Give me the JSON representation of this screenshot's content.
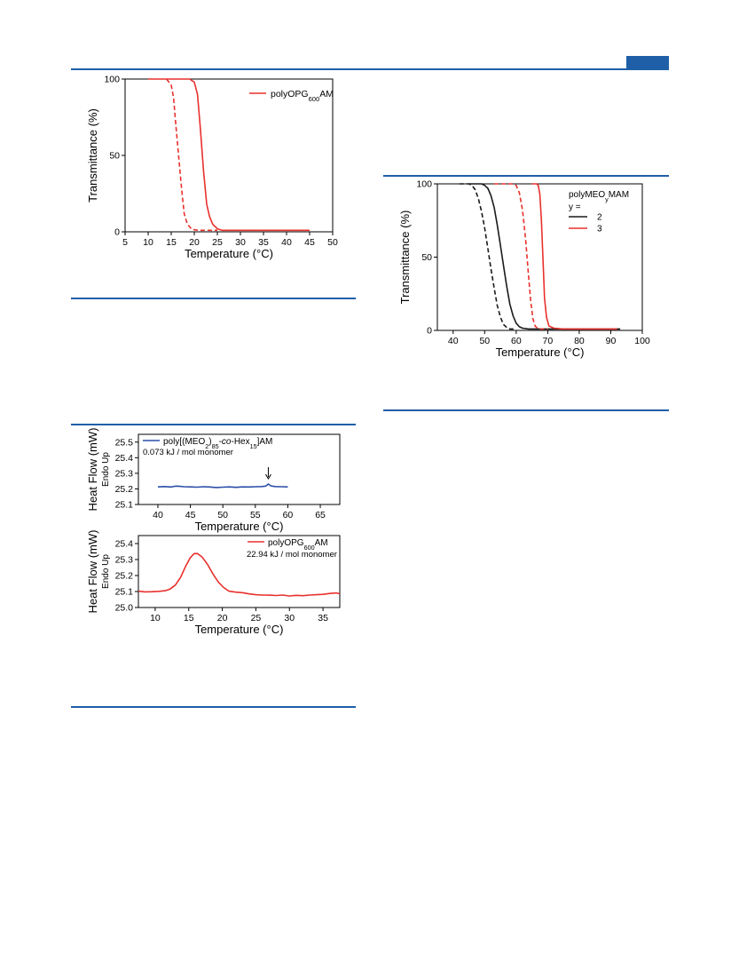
{
  "page": {
    "accent_color": "#1f5fa8"
  },
  "chart_data": [
    {
      "id": "chart-top-left",
      "type": "line",
      "xlabel": "Temperature (°C)",
      "ylabel": "Transmittance (%)",
      "xlim": [
        5,
        50
      ],
      "ylim": [
        0,
        100
      ],
      "xticks": [
        5,
        10,
        15,
        20,
        25,
        30,
        35,
        40,
        45,
        50
      ],
      "yticks": [
        0,
        50,
        100
      ],
      "legend": {
        "position": "top-right",
        "entries": [
          {
            "label": "polyOPG",
            "sub": "600",
            "suffix": "AM",
            "color": "#e8312d"
          }
        ]
      },
      "series": [
        {
          "color": "#e8312d",
          "dash": false,
          "points": [
            [
              10,
              100
            ],
            [
              19,
              100
            ],
            [
              20,
              98
            ],
            [
              20.7,
              90
            ],
            [
              21.3,
              68
            ],
            [
              22,
              40
            ],
            [
              22.7,
              18
            ],
            [
              23.3,
              10
            ],
            [
              24,
              5
            ],
            [
              25,
              2
            ],
            [
              26,
              1
            ],
            [
              30,
              1
            ],
            [
              45,
              1
            ]
          ]
        },
        {
          "color": "#e8312d",
          "dash": true,
          "points": [
            [
              14,
              100
            ],
            [
              15,
              96
            ],
            [
              15.5,
              88
            ],
            [
              16,
              70
            ],
            [
              16.6,
              50
            ],
            [
              17.2,
              30
            ],
            [
              17.8,
              12
            ],
            [
              18.5,
              5
            ],
            [
              19.5,
              1.5
            ],
            [
              21,
              1
            ],
            [
              25,
              1
            ]
          ]
        }
      ]
    },
    {
      "id": "chart-top-right",
      "type": "line",
      "xlabel": "Temperature (°C)",
      "ylabel": "Transmittance (%)",
      "xlim": [
        35,
        100
      ],
      "ylim": [
        0,
        100
      ],
      "xticks": [
        40,
        50,
        60,
        70,
        80,
        90,
        100
      ],
      "yticks": [
        0,
        50,
        100
      ],
      "legend": {
        "position": "top-right",
        "title": "polyMEO",
        "title_sub": "y",
        "title_suffix": "MAM",
        "subtitle": "y =",
        "entries": [
          {
            "label": "2",
            "color": "#1a1a1a"
          },
          {
            "label": "3",
            "color": "#e8312d"
          }
        ]
      },
      "series": [
        {
          "color": "#1a1a1a",
          "dash": false,
          "points": [
            [
              45,
              100
            ],
            [
              49,
              100
            ],
            [
              50,
              99
            ],
            [
              51,
              97
            ],
            [
              52,
              92
            ],
            [
              53,
              84
            ],
            [
              54,
              72
            ],
            [
              55,
              58
            ],
            [
              56,
              44
            ],
            [
              57,
              30
            ],
            [
              58,
              18
            ],
            [
              59,
              10
            ],
            [
              60,
              5
            ],
            [
              61,
              2.5
            ],
            [
              62,
              1.5
            ],
            [
              64,
              1
            ],
            [
              70,
              1
            ],
            [
              80,
              1
            ],
            [
              90,
              1
            ],
            [
              93,
              1
            ]
          ]
        },
        {
          "color": "#1a1a1a",
          "dash": true,
          "points": [
            [
              42,
              100
            ],
            [
              45,
              100
            ],
            [
              46,
              99
            ],
            [
              47,
              96
            ],
            [
              48,
              90
            ],
            [
              49,
              81
            ],
            [
              50,
              70
            ],
            [
              51,
              56
            ],
            [
              52,
              42
            ],
            [
              53,
              29
            ],
            [
              54,
              17
            ],
            [
              55,
              9
            ],
            [
              56,
              4
            ],
            [
              57,
              2
            ],
            [
              58,
              1
            ],
            [
              60,
              1
            ]
          ]
        },
        {
          "color": "#e8312d",
          "dash": true,
          "points": [
            [
              53,
              100
            ],
            [
              59,
              100
            ],
            [
              60,
              99
            ],
            [
              61,
              94
            ],
            [
              62,
              82
            ],
            [
              63,
              62
            ],
            [
              63.8,
              40
            ],
            [
              64.6,
              20
            ],
            [
              65.3,
              8
            ],
            [
              66,
              3
            ],
            [
              67,
              1
            ],
            [
              70,
              1
            ]
          ]
        },
        {
          "color": "#e8312d",
          "dash": false,
          "points": [
            [
              65,
              100
            ],
            [
              66.5,
              100
            ],
            [
              67,
              99
            ],
            [
              67.5,
              93
            ],
            [
              68,
              75
            ],
            [
              68.5,
              48
            ],
            [
              69,
              22
            ],
            [
              69.6,
              9
            ],
            [
              70.4,
              3
            ],
            [
              72,
              1.5
            ],
            [
              75,
              1
            ],
            [
              80,
              1
            ],
            [
              90,
              1
            ],
            [
              92,
              1
            ]
          ]
        }
      ]
    },
    {
      "id": "chart-dsc-upper",
      "type": "line",
      "xlabel": "Temperature (°C)",
      "ylabel": "Heat Flow (mW)",
      "ylabel2": "Endo Up",
      "xlim": [
        37,
        68
      ],
      "ylim": [
        25.1,
        25.55
      ],
      "xticks": [
        40,
        45,
        50,
        55,
        60,
        65
      ],
      "yticks": [
        25.1,
        25.2,
        25.3,
        25.4,
        25.5
      ],
      "legend": {
        "position": "top-left",
        "entries": [
          {
            "label_parts": [
              "poly[(MEO",
              "2",
              ")",
              "85",
              "-",
              "co",
              "-Hex",
              "15",
              "]AM"
            ],
            "color": "#2b4ea8"
          }
        ],
        "note": "0.073 kJ / mol monomer"
      },
      "arrow_at_x": 57,
      "series": [
        {
          "color": "#2b4ea8",
          "dash": false,
          "points": [
            [
              40,
              25.213
            ],
            [
              41,
              25.215
            ],
            [
              42,
              25.212
            ],
            [
              42.5,
              25.216
            ],
            [
              43,
              25.218
            ],
            [
              44,
              25.214
            ],
            [
              45,
              25.213
            ],
            [
              46,
              25.211
            ],
            [
              47,
              25.214
            ],
            [
              48,
              25.212
            ],
            [
              49,
              25.209
            ],
            [
              50,
              25.211
            ],
            [
              51,
              25.213
            ],
            [
              52,
              25.21
            ],
            [
              53,
              25.213
            ],
            [
              54,
              25.212
            ],
            [
              55,
              25.214
            ],
            [
              56,
              25.215
            ],
            [
              56.6,
              25.218
            ],
            [
              57,
              25.231
            ],
            [
              57.4,
              25.219
            ],
            [
              58,
              25.215
            ],
            [
              59,
              25.214
            ],
            [
              60,
              25.213
            ]
          ]
        }
      ]
    },
    {
      "id": "chart-dsc-lower",
      "type": "line",
      "xlabel": "Temperature (°C)",
      "ylabel": "Heat Flow (mW)",
      "ylabel2": "Endo Up",
      "xlim": [
        7.5,
        37.5
      ],
      "ylim": [
        25.0,
        25.45
      ],
      "xticks": [
        10,
        15,
        20,
        25,
        30,
        35
      ],
      "yticks": [
        25.0,
        25.1,
        25.2,
        25.3,
        25.4
      ],
      "legend": {
        "position": "top-right",
        "entries": [
          {
            "label": "polyOPG",
            "sub": "600",
            "suffix": "AM",
            "color": "#e8312d"
          }
        ],
        "note": "22.94 kJ / mol monomer"
      },
      "series": [
        {
          "color": "#e8312d",
          "dash": false,
          "points": [
            [
              7.5,
              25.102
            ],
            [
              8.5,
              25.098
            ],
            [
              9.5,
              25.099
            ],
            [
              10.5,
              25.101
            ],
            [
              11.5,
              25.105
            ],
            [
              12.2,
              25.115
            ],
            [
              13,
              25.14
            ],
            [
              13.8,
              25.19
            ],
            [
              14.5,
              25.255
            ],
            [
              15.2,
              25.31
            ],
            [
              15.8,
              25.337
            ],
            [
              16.3,
              25.338
            ],
            [
              17,
              25.315
            ],
            [
              17.8,
              25.27
            ],
            [
              18.6,
              25.21
            ],
            [
              19.4,
              25.16
            ],
            [
              20.2,
              25.125
            ],
            [
              21,
              25.102
            ],
            [
              22,
              25.096
            ],
            [
              23,
              25.093
            ],
            [
              24,
              25.085
            ],
            [
              25,
              25.08
            ],
            [
              26,
              25.078
            ],
            [
              27,
              25.077
            ],
            [
              28,
              25.075
            ],
            [
              29,
              25.078
            ],
            [
              30,
              25.072
            ],
            [
              31,
              25.076
            ],
            [
              32,
              25.074
            ],
            [
              33,
              25.078
            ],
            [
              34,
              25.08
            ],
            [
              35,
              25.082
            ],
            [
              36,
              25.088
            ],
            [
              37,
              25.091
            ],
            [
              37.5,
              25.086
            ]
          ]
        }
      ]
    }
  ]
}
